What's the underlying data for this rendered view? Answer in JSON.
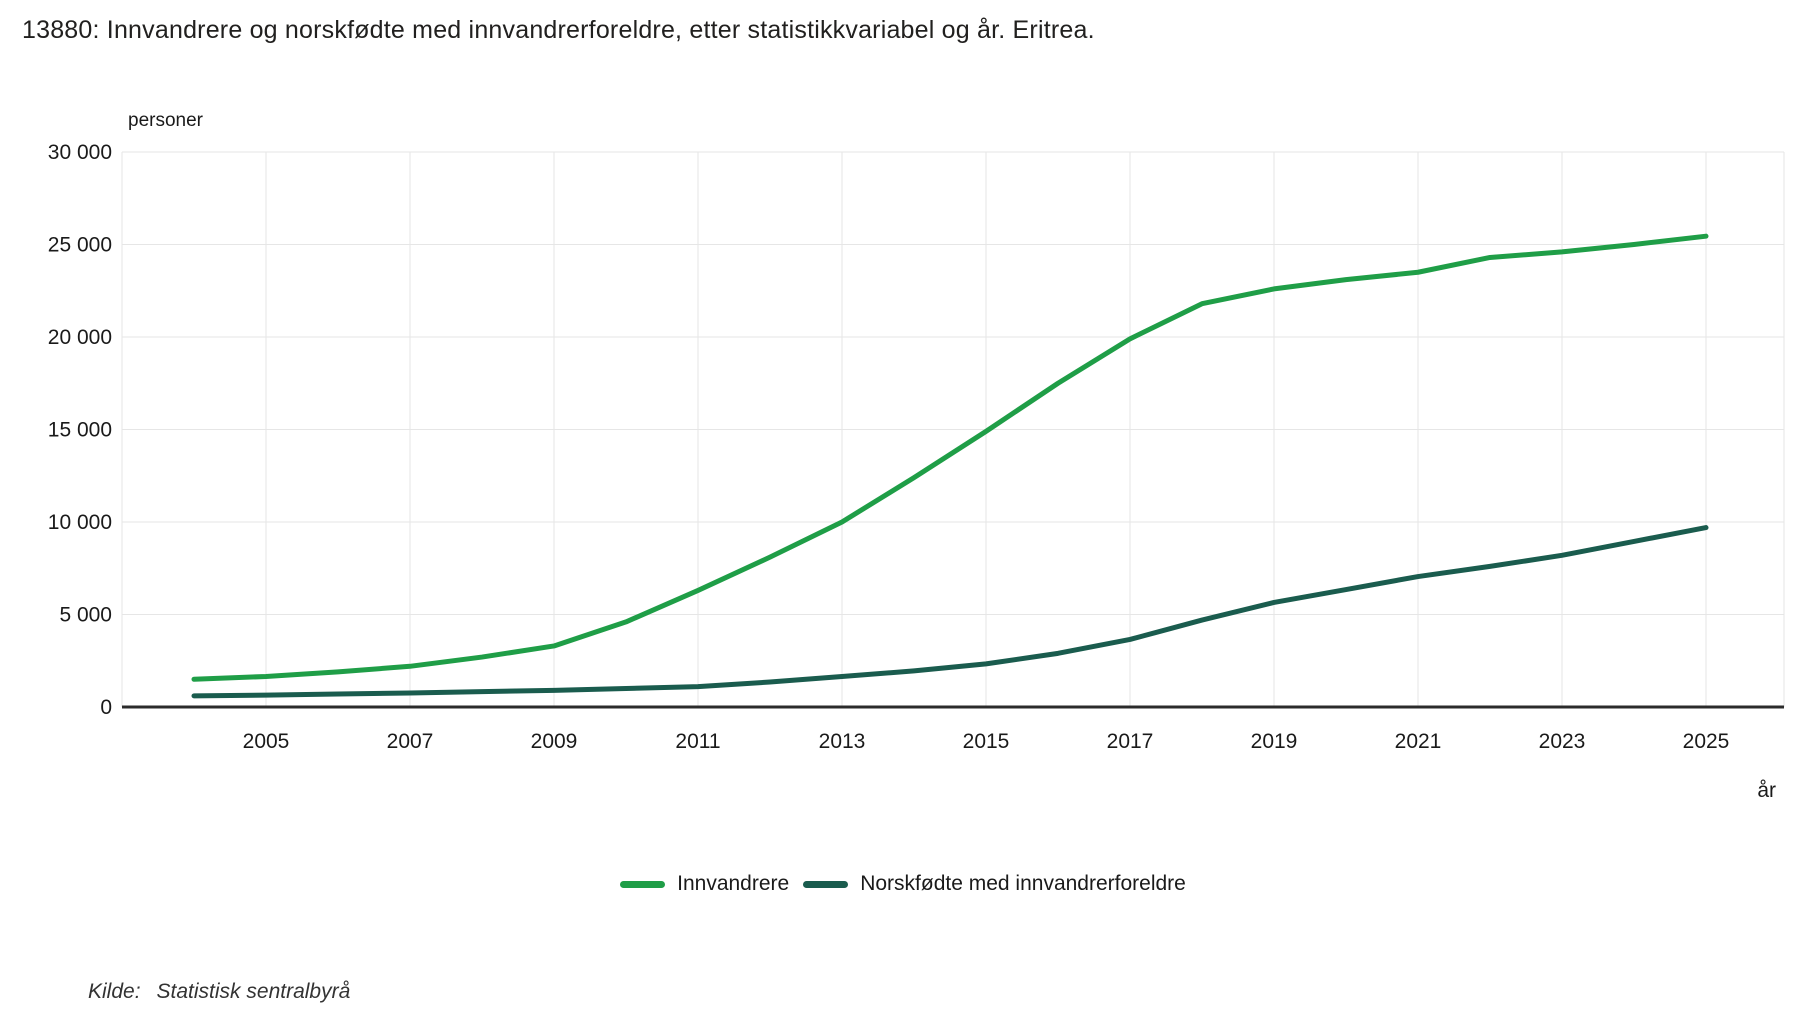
{
  "chart_data": {
    "type": "line",
    "title": "13880: Innvandrere og norskfødte med innvandrerforeldre, etter statistikkvariabel og år. Eritrea.",
    "ylabel": "personer",
    "xlabel": "år",
    "ylim": [
      0,
      30000
    ],
    "grid": true,
    "legend_position": "bottom-center",
    "x": [
      2004,
      2005,
      2006,
      2007,
      2008,
      2009,
      2010,
      2011,
      2012,
      2013,
      2014,
      2015,
      2016,
      2017,
      2018,
      2019,
      2020,
      2021,
      2022,
      2023,
      2024,
      2025
    ],
    "series": [
      {
        "name": "Innvandrere",
        "color": "#1f9e47",
        "values": [
          1500,
          1650,
          1900,
          2200,
          2700,
          3300,
          4600,
          6300,
          8100,
          10000,
          12400,
          14900,
          17500,
          19900,
          21800,
          22600,
          23100,
          23500,
          24300,
          24600,
          25000,
          25450
        ]
      },
      {
        "name": "Norskfødte med innvandrerforeldre",
        "color": "#1a5c4e",
        "values": [
          600,
          640,
          700,
          760,
          830,
          900,
          1000,
          1100,
          1350,
          1650,
          1950,
          2330,
          2900,
          3650,
          4700,
          5650,
          6350,
          7050,
          7600,
          8200,
          8950,
          9700
        ]
      }
    ],
    "yticks": [
      {
        "value": 0,
        "label": "0"
      },
      {
        "value": 5000,
        "label": "5 000"
      },
      {
        "value": 10000,
        "label": "10 000"
      },
      {
        "value": 15000,
        "label": "15 000"
      },
      {
        "value": 20000,
        "label": "20 000"
      },
      {
        "value": 25000,
        "label": "25 000"
      },
      {
        "value": 30000,
        "label": "30 000"
      }
    ],
    "xticks": [
      {
        "value": 2005,
        "label": "2005"
      },
      {
        "value": 2007,
        "label": "2007"
      },
      {
        "value": 2009,
        "label": "2009"
      },
      {
        "value": 2011,
        "label": "2011"
      },
      {
        "value": 2013,
        "label": "2013"
      },
      {
        "value": 2015,
        "label": "2015"
      },
      {
        "value": 2017,
        "label": "2017"
      },
      {
        "value": 2019,
        "label": "2019"
      },
      {
        "value": 2021,
        "label": "2021"
      },
      {
        "value": 2023,
        "label": "2023"
      },
      {
        "value": 2025,
        "label": "2025"
      }
    ],
    "colors": {
      "axis_line": "#2b2b2b",
      "grid_line": "#e6e6e6",
      "tick_text": "#1a1a1a"
    }
  },
  "source": {
    "prefix": "Kilde:",
    "text": "Statistisk sentralbyrå"
  }
}
